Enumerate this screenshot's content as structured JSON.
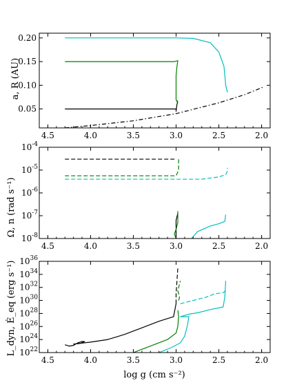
{
  "chart_data": [
    {
      "type": "line",
      "ylabel": "a, R (AU)",
      "xlabel": "",
      "xlim": [
        4.6,
        1.9
      ],
      "ylim": [
        0.01,
        0.21
      ],
      "yscale": "linear",
      "x_ticks": [
        "4.5",
        "4.0",
        "3.5",
        "3.0",
        "2.5",
        "2.0"
      ],
      "y_ticks": [
        "0.05",
        "0.10",
        "0.15",
        "0.20"
      ],
      "y_tick_values": [
        0.05,
        0.1,
        0.15,
        0.2
      ],
      "series": [
        {
          "color": "#000000",
          "style": "solid",
          "points": [
            [
              4.3,
              0.05
            ],
            [
              3.0,
              0.05
            ],
            [
              3.0,
              0.045
            ],
            [
              2.99,
              0.06
            ],
            [
              2.98,
              0.065
            ]
          ]
        },
        {
          "color": "#007f00",
          "style": "solid",
          "points": [
            [
              4.3,
              0.15
            ],
            [
              3.02,
              0.15
            ],
            [
              2.98,
              0.152
            ],
            [
              2.99,
              0.14
            ],
            [
              3.0,
              0.12
            ],
            [
              3.0,
              0.07
            ],
            [
              2.99,
              0.065
            ],
            [
              2.98,
              0.068
            ]
          ]
        },
        {
          "color": "#00bfbf",
          "style": "solid",
          "points": [
            [
              4.3,
              0.2
            ],
            [
              3.0,
              0.2
            ],
            [
              2.8,
              0.199
            ],
            [
              2.6,
              0.19
            ],
            [
              2.5,
              0.17
            ],
            [
              2.44,
              0.14
            ],
            [
              2.42,
              0.1
            ],
            [
              2.4,
              0.085
            ]
          ]
        },
        {
          "color": "#000000",
          "style": "dashdot",
          "points": [
            [
              4.3,
              0.01
            ],
            [
              4.0,
              0.015
            ],
            [
              3.5,
              0.025
            ],
            [
              3.0,
              0.04
            ],
            [
              2.5,
              0.063
            ],
            [
              2.2,
              0.08
            ],
            [
              1.97,
              0.097
            ]
          ]
        }
      ]
    },
    {
      "type": "line",
      "ylabel": "Ω, n (rad s⁻¹)",
      "xlabel": "",
      "xlim": [
        4.6,
        1.9
      ],
      "ylim": [
        -8,
        -4
      ],
      "yscale": "log10 (values are exponents)",
      "x_ticks": [
        "4.5",
        "4.0",
        "3.5",
        "3.0",
        "2.5",
        "2.0"
      ],
      "y_ticks": [
        "10",
        "10",
        "10",
        "10",
        "10"
      ],
      "y_tick_exponents": [
        "-8",
        "-7",
        "-6",
        "-5",
        "-4"
      ],
      "y_tick_values": [
        -8,
        -7,
        -6,
        -5,
        -4
      ],
      "series": [
        {
          "color": "#000000",
          "style": "dashed",
          "points": [
            [
              4.3,
              -4.52
            ],
            [
              3.0,
              -4.52
            ]
          ]
        },
        {
          "color": "#007f00",
          "style": "dashed",
          "points": [
            [
              4.3,
              -5.25
            ],
            [
              3.0,
              -5.25
            ],
            [
              2.97,
              -5.0
            ],
            [
              2.97,
              -4.5
            ]
          ]
        },
        {
          "color": "#00bfbf",
          "style": "dashed",
          "points": [
            [
              4.3,
              -5.4
            ],
            [
              3.0,
              -5.4
            ],
            [
              2.7,
              -5.4
            ],
            [
              2.5,
              -5.3
            ],
            [
              2.42,
              -5.2
            ],
            [
              2.4,
              -5.05
            ],
            [
              2.4,
              -4.9
            ]
          ]
        },
        {
          "color": "#000000",
          "style": "solid",
          "points": [
            [
              3.0,
              -8.0
            ],
            [
              3.0,
              -7.2
            ],
            [
              2.98,
              -6.9
            ]
          ]
        },
        {
          "color": "#007f00",
          "style": "solid",
          "points": [
            [
              2.98,
              -6.8
            ],
            [
              2.98,
              -7.3
            ],
            [
              3.0,
              -7.6
            ],
            [
              3.02,
              -7.8
            ],
            [
              3.0,
              -8.0
            ]
          ]
        },
        {
          "color": "#00bfbf",
          "style": "solid",
          "points": [
            [
              2.82,
              -8.0
            ],
            [
              2.75,
              -7.7
            ],
            [
              2.6,
              -7.45
            ],
            [
              2.5,
              -7.35
            ],
            [
              2.43,
              -7.25
            ],
            [
              2.42,
              -6.95
            ]
          ]
        }
      ]
    },
    {
      "type": "line",
      "ylabel": "L_dyn, Ė_eq (erg s⁻¹)",
      "xlabel": "log g (cm s⁻²)",
      "xlim": [
        4.6,
        1.9
      ],
      "ylim": [
        22,
        36
      ],
      "yscale": "log10 (values are exponents)",
      "x_ticks": [
        "4.5",
        "4.0",
        "3.5",
        "3.0",
        "2.5",
        "2.0"
      ],
      "y_ticks": [
        "10",
        "10",
        "10",
        "10",
        "10",
        "10",
        "10",
        "10"
      ],
      "y_tick_exponents": [
        "22",
        "24",
        "26",
        "28",
        "30",
        "32",
        "34",
        "36"
      ],
      "y_tick_values": [
        22,
        24,
        26,
        28,
        30,
        32,
        34,
        36
      ],
      "series": [
        {
          "color": "#000000",
          "style": "solid",
          "points": [
            [
              4.3,
              23.2
            ],
            [
              4.25,
              23.0
            ],
            [
              4.2,
              23.1
            ],
            [
              4.15,
              23.5
            ],
            [
              4.1,
              23.7
            ],
            [
              4.07,
              23.7
            ],
            [
              4.12,
              23.4
            ],
            [
              4.2,
              23.3
            ],
            [
              4.0,
              23.6
            ],
            [
              3.8,
              24.0
            ],
            [
              3.7,
              24.4
            ],
            [
              3.6,
              24.8
            ],
            [
              3.4,
              25.8
            ],
            [
              3.2,
              26.8
            ],
            [
              3.03,
              27.5
            ],
            [
              3.0,
              29.5
            ]
          ]
        },
        {
          "color": "#007f00",
          "style": "solid",
          "points": [
            [
              3.5,
              22.0
            ],
            [
              3.3,
              23.0
            ],
            [
              3.1,
              24.0
            ],
            [
              3.0,
              25.0
            ],
            [
              2.98,
              26.0
            ],
            [
              2.97,
              27.5
            ],
            [
              2.98,
              28.5
            ]
          ]
        },
        {
          "color": "#00bfbf",
          "style": "solid",
          "points": [
            [
              3.2,
              22.0
            ],
            [
              3.05,
              22.8
            ],
            [
              2.95,
              23.5
            ],
            [
              2.9,
              24.5
            ],
            [
              2.87,
              26.0
            ],
            [
              2.85,
              27.5
            ],
            [
              2.95,
              27.5
            ],
            [
              2.85,
              27.9
            ],
            [
              2.75,
              28.1
            ],
            [
              2.6,
              28.6
            ],
            [
              2.45,
              29.0
            ],
            [
              2.43,
              30.5
            ],
            [
              2.42,
              33.0
            ]
          ]
        },
        {
          "color": "#000000",
          "style": "dashed",
          "points": [
            [
              3.0,
              29.5
            ],
            [
              3.0,
              31.0
            ],
            [
              2.99,
              33.0
            ],
            [
              2.98,
              35.0
            ]
          ]
        },
        {
          "color": "#007f00",
          "style": "dashed",
          "points": [
            [
              2.97,
              30.0
            ],
            [
              2.96,
              30.5
            ],
            [
              2.98,
              31.5
            ],
            [
              2.95,
              33.0
            ]
          ]
        },
        {
          "color": "#00bfbf",
          "style": "dashed",
          "points": [
            [
              2.95,
              29.5
            ],
            [
              2.8,
              30.0
            ],
            [
              2.65,
              30.5
            ],
            [
              2.55,
              31.0
            ],
            [
              2.45,
              31.2
            ],
            [
              2.42,
              31.5
            ]
          ]
        }
      ]
    }
  ]
}
